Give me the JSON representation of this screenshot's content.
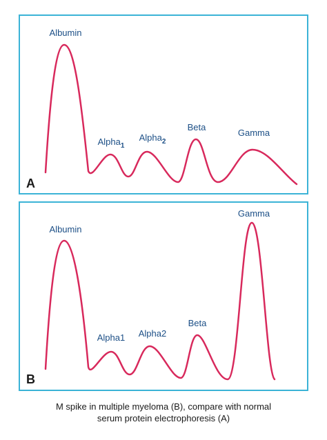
{
  "panels": [
    {
      "letter": "A",
      "labels": [
        {
          "text": "Albumin"
        },
        {
          "text": "Alpha",
          "sub": "1"
        },
        {
          "text": "Alpha",
          "sub": "2"
        },
        {
          "text": "Beta"
        },
        {
          "text": "Gamma"
        }
      ]
    },
    {
      "letter": "B",
      "labels": [
        {
          "text": "Albumin"
        },
        {
          "text": "Alpha1"
        },
        {
          "text": "Alpha2"
        },
        {
          "text": "Beta"
        },
        {
          "text": "Gamma"
        }
      ]
    }
  ],
  "caption": [
    "M spike in multiple myeloma (B), compare with normal",
    "serum protein electrophoresis (A)"
  ]
}
